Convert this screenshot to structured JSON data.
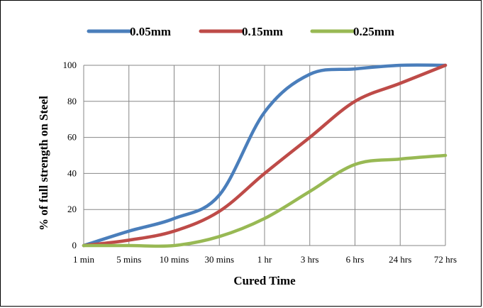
{
  "chart_data": {
    "type": "line",
    "categories": [
      "1 min",
      "5 mins",
      "10 mins",
      "30 mins",
      "1 hr",
      "3 hrs",
      "6 hrs",
      "24 hrs",
      "72 hrs"
    ],
    "series": [
      {
        "name": "0.05mm",
        "color": "#4a7ebb",
        "values": [
          0,
          8,
          15,
          28,
          74,
          95,
          98,
          100,
          100
        ]
      },
      {
        "name": "0.15mm",
        "color": "#be4b48",
        "values": [
          0,
          3,
          8,
          19,
          40,
          60,
          80,
          90,
          100
        ]
      },
      {
        "name": "0.25mm",
        "color": "#98b954",
        "values": [
          0,
          0,
          0,
          5,
          15,
          30,
          45,
          48,
          50
        ]
      }
    ],
    "xlabel": "Cured Time",
    "ylabel": "% of full strength on Steel",
    "ylim": [
      0,
      100
    ],
    "yticks": [
      0,
      20,
      40,
      60,
      80,
      100
    ],
    "grid": true,
    "legend_position": "top"
  }
}
